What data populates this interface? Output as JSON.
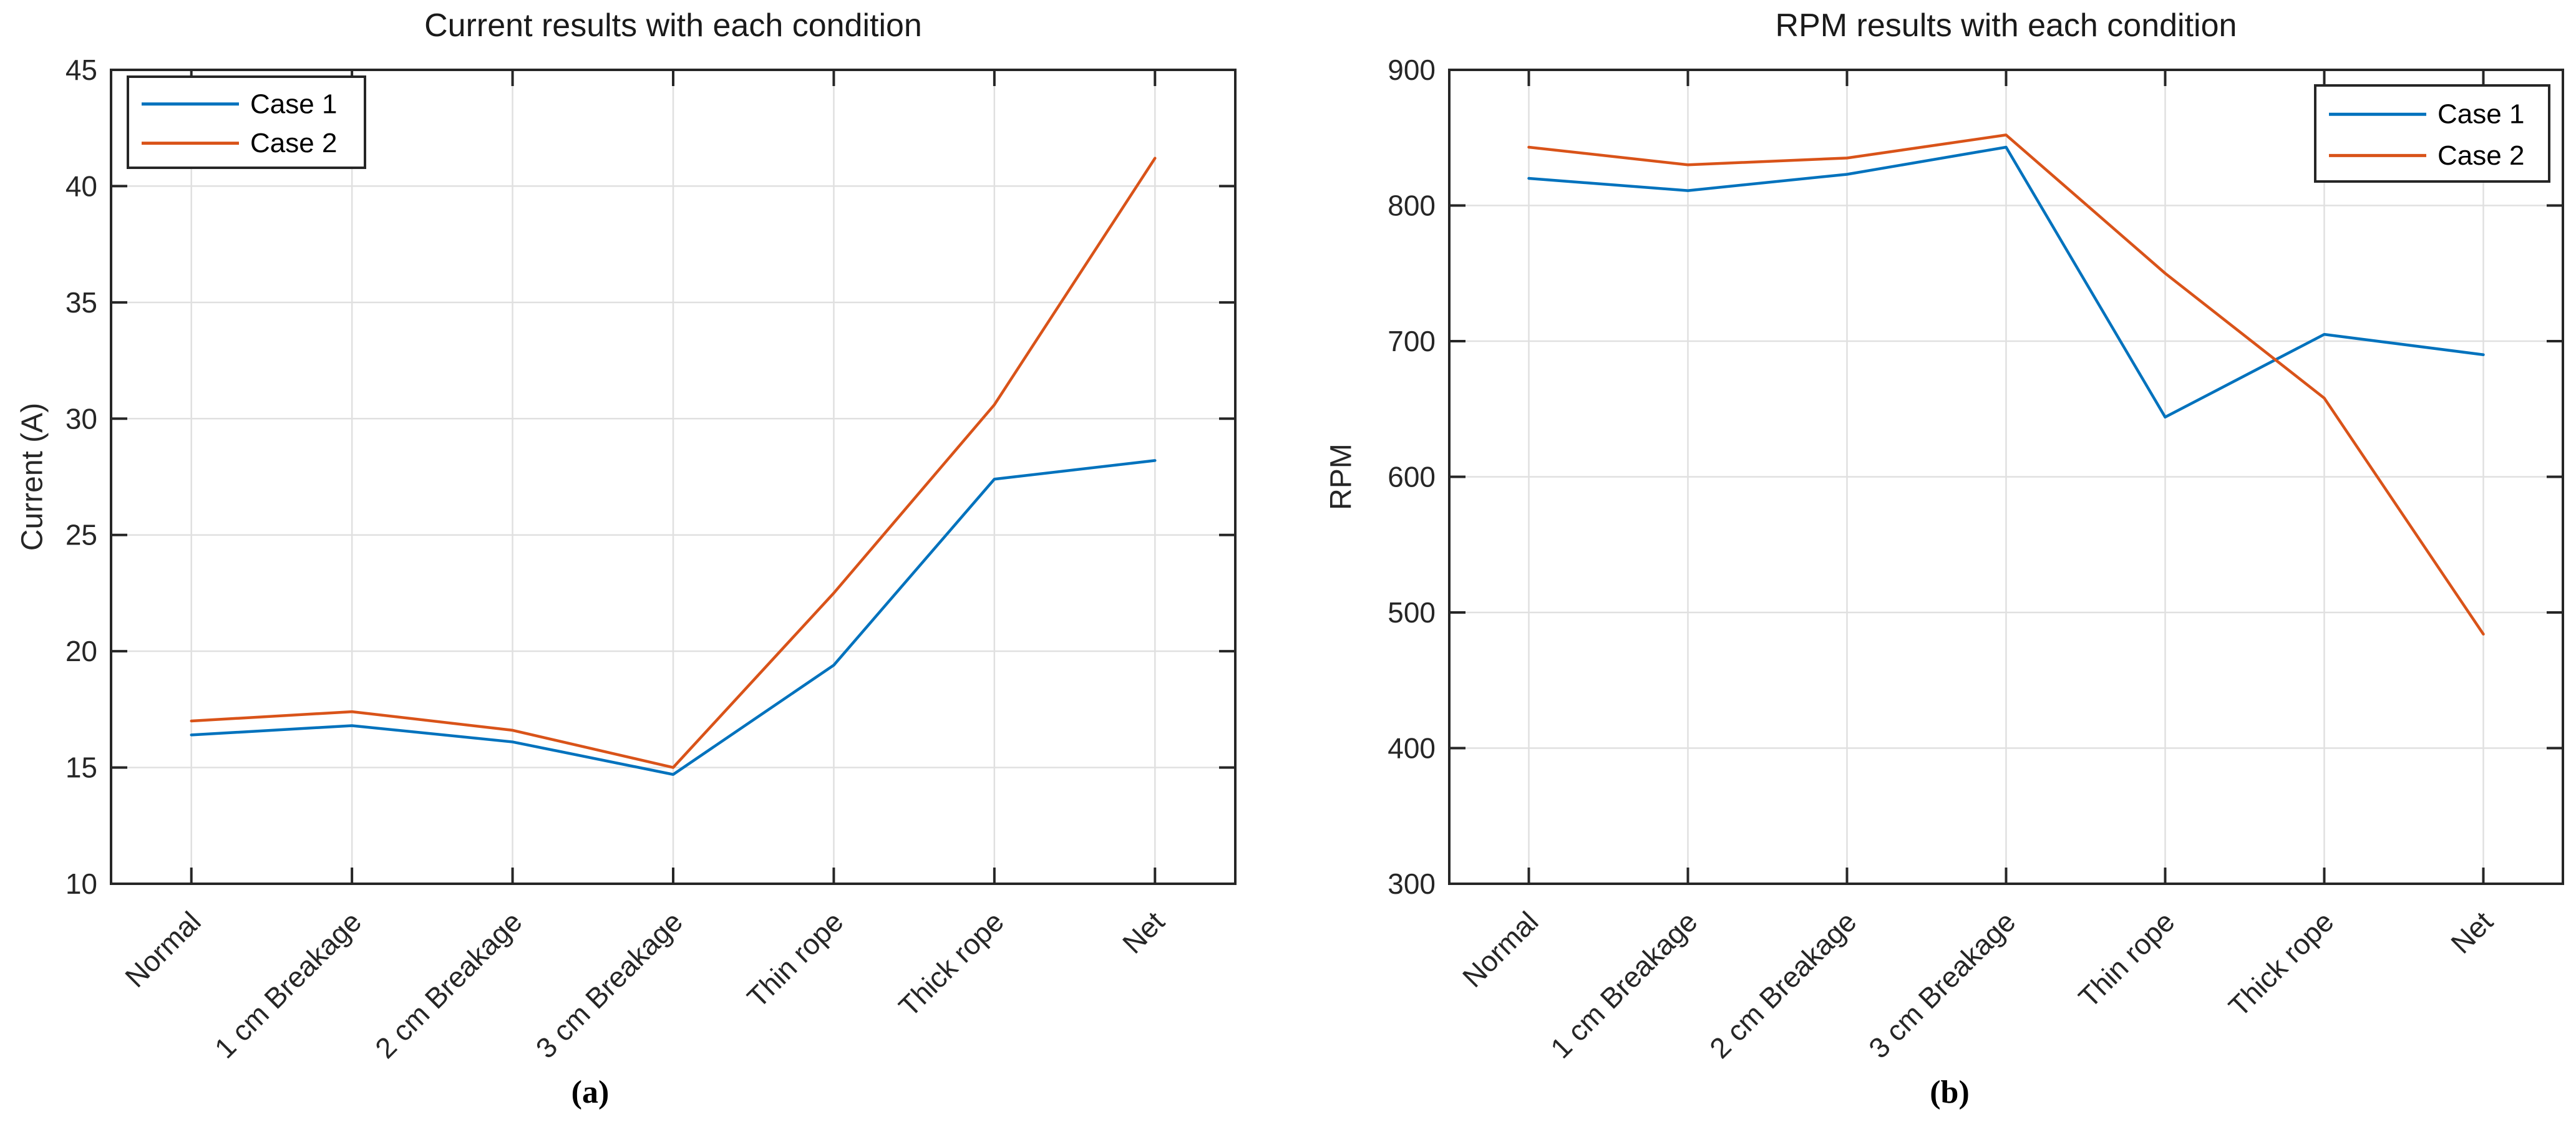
{
  "figure": {
    "description": "Two side-by-side line charts comparing Case 1 and Case 2 across seven test conditions"
  },
  "captions": {
    "a": "(a)",
    "b": "(b)"
  },
  "colors": {
    "case1_blue": "#0072BD",
    "case2_orange": "#D95319",
    "grid": "#E0E0E0",
    "axis": "#262626",
    "tick_label": "#262626",
    "title": "#1A1A1A",
    "legend_border": "#262626",
    "background": "#FFFFFF"
  },
  "chart_data": [
    {
      "type": "line",
      "title": "Current results with each condition",
      "xlabel": "",
      "ylabel": "Current (A)",
      "categories": [
        "Normal",
        "1 cm Breakage",
        "2 cm Breakage",
        "3 cm Breakage",
        "Thin rope",
        "Thick rope",
        "Net"
      ],
      "series": [
        {
          "name": "Case 1",
          "color": "#0072BD",
          "values": [
            16.4,
            16.8,
            16.1,
            14.7,
            19.4,
            27.4,
            28.2
          ]
        },
        {
          "name": "Case 2",
          "color": "#D95319",
          "values": [
            17.0,
            17.4,
            16.6,
            15.0,
            22.5,
            30.6,
            41.2
          ]
        }
      ],
      "ylim": [
        10,
        45
      ],
      "yticks": [
        10,
        15,
        20,
        25,
        30,
        35,
        40,
        45
      ],
      "grid": true,
      "legend_position": "top-left"
    },
    {
      "type": "line",
      "title": "RPM results with each condition",
      "xlabel": "",
      "ylabel": "RPM",
      "categories": [
        "Normal",
        "1 cm Breakage",
        "2 cm Breakage",
        "3 cm Breakage",
        "Thin rope",
        "Thick rope",
        "Net"
      ],
      "series": [
        {
          "name": "Case 1",
          "color": "#0072BD",
          "values": [
            820,
            811,
            823,
            843,
            644,
            705,
            690
          ]
        },
        {
          "name": "Case 2",
          "color": "#D95319",
          "values": [
            843,
            830,
            835,
            852,
            750,
            658,
            484
          ]
        }
      ],
      "ylim": [
        300,
        900
      ],
      "yticks": [
        300,
        400,
        500,
        600,
        700,
        800,
        900
      ],
      "grid": true,
      "legend_position": "top-right"
    }
  ]
}
